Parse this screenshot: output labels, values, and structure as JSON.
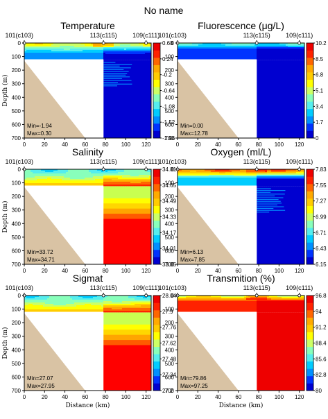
{
  "figure": {
    "title": "No name"
  },
  "chart_data": [
    {
      "type": "heatmap",
      "title": "Temperature",
      "xlabel": "Distance (km)",
      "ylabel": "Depth (m)",
      "xlim": [
        0,
        125
      ],
      "ylim": [
        700,
        0
      ],
      "x_ticks": [
        0,
        20,
        40,
        60,
        80,
        100,
        120
      ],
      "y_ticks": [
        0,
        100,
        200,
        300,
        400,
        500,
        600,
        700
      ],
      "stations": [
        {
          "label": "101(c103)",
          "x": 0
        },
        {
          "label": "113(c115)",
          "x": 78
        },
        {
          "label": "109(c111)",
          "x": 120
        }
      ],
      "colorbar": {
        "ticks": [
          "0.68",
          "0.24",
          "-0.2",
          "-0.64",
          "-1.08",
          "-1.52",
          "-1.96"
        ]
      },
      "min_label": "Min=-1.94",
      "max_label": "Max=0.30",
      "field": {
        "surface_level": 0.55,
        "deep_level": 0.05,
        "deep_west_level": 0.2,
        "pycnocline_m": 90,
        "mix_m": 40,
        "fish": true
      }
    },
    {
      "type": "heatmap",
      "title": "Fluorescence (μg/L)",
      "xlabel": "Distance (km)",
      "ylabel": "Depth (m)",
      "xlim": [
        0,
        125
      ],
      "ylim": [
        700,
        0
      ],
      "x_ticks": [
        0,
        20,
        40,
        60,
        80,
        100,
        120
      ],
      "y_ticks": [
        0,
        100,
        200,
        300,
        400,
        500,
        600,
        700
      ],
      "stations": [
        {
          "label": "101(c103)",
          "x": 0
        },
        {
          "label": "113(c115)",
          "x": 78
        },
        {
          "label": "109(c111)",
          "x": 120
        }
      ],
      "colorbar": {
        "ticks": [
          "10.2",
          "8.5",
          "6.8",
          "5.1",
          "3.4",
          "1.7",
          "0"
        ]
      },
      "min_label": "Min=0.00",
      "max_label": "Max=12.78",
      "field": {
        "surface_level": 0.35,
        "deep_level": 0.02,
        "deep_west_level": 0.1,
        "pycnocline_m": 60,
        "mix_m": 30,
        "fish": false
      }
    },
    {
      "type": "heatmap",
      "title": "Salinity",
      "xlabel": "Distance (km)",
      "ylabel": "Depth (m)",
      "xlim": [
        0,
        125
      ],
      "ylim": [
        700,
        0
      ],
      "x_ticks": [
        0,
        20,
        40,
        60,
        80,
        100,
        120
      ],
      "y_ticks": [
        0,
        100,
        200,
        300,
        400,
        500,
        600,
        700
      ],
      "stations": [
        {
          "label": "101(c103)",
          "x": 0
        },
        {
          "label": "113(c115)",
          "x": 78
        },
        {
          "label": "109(c111)",
          "x": 120
        }
      ],
      "colorbar": {
        "ticks": [
          "34.81",
          "34.65",
          "34.49",
          "34.33",
          "34.17",
          "34.01",
          "33.85"
        ]
      },
      "min_label": "Min=33.72",
      "max_label": "Max=34.71",
      "field": {
        "surface_level": 0.35,
        "deep_level": 0.95,
        "deep_west_level": 0.7,
        "pycnocline_m": 150,
        "mix_m": 200,
        "fish": false
      }
    },
    {
      "type": "heatmap",
      "title": "Oxygen (ml/L)",
      "xlabel": "Distance (km)",
      "ylabel": "Depth (m)",
      "xlim": [
        0,
        125
      ],
      "ylim": [
        700,
        0
      ],
      "x_ticks": [
        0,
        20,
        40,
        60,
        80,
        100,
        120
      ],
      "y_ticks": [
        0,
        100,
        200,
        300,
        400,
        500,
        600,
        700
      ],
      "stations": [
        {
          "label": "101(c103)",
          "x": 0
        },
        {
          "label": "113(c115)",
          "x": 78
        },
        {
          "label": "109(c111)",
          "x": 120
        }
      ],
      "colorbar": {
        "ticks": [
          "7.83",
          "7.55",
          "7.27",
          "6.99",
          "6.71",
          "6.43",
          "6.15"
        ]
      },
      "min_label": "Min=6.13",
      "max_label": "Max=7.85",
      "field": {
        "surface_level": 0.8,
        "deep_level": 0.06,
        "deep_west_level": 0.25,
        "pycnocline_m": 80,
        "mix_m": 50,
        "fish": true
      }
    },
    {
      "type": "heatmap",
      "title": "Sigmat",
      "xlabel": "Distance (km)",
      "ylabel": "Depth (m)",
      "xlim": [
        0,
        125
      ],
      "ylim": [
        700,
        0
      ],
      "x_ticks": [
        0,
        20,
        40,
        60,
        80,
        100,
        120
      ],
      "y_ticks": [
        0,
        100,
        200,
        300,
        400,
        500,
        600,
        700
      ],
      "stations": [
        {
          "label": "101(c103)",
          "x": 0
        },
        {
          "label": "113(c115)",
          "x": 78
        },
        {
          "label": "109(c111)",
          "x": 120
        }
      ],
      "colorbar": {
        "ticks": [
          "28.04",
          "27.9",
          "27.76",
          "27.62",
          "27.48",
          "27.34",
          "27.2"
        ]
      },
      "min_label": "Min=27.07",
      "max_label": "Max=27.95",
      "field": {
        "surface_level": 0.35,
        "deep_level": 0.95,
        "deep_west_level": 0.7,
        "pycnocline_m": 150,
        "mix_m": 200,
        "fish": false
      }
    },
    {
      "type": "heatmap",
      "title": "Transmition (%)",
      "xlabel": "Distance (km)",
      "ylabel": "Depth (m)",
      "xlim": [
        0,
        125
      ],
      "ylim": [
        700,
        0
      ],
      "x_ticks": [
        0,
        20,
        40,
        60,
        80,
        100,
        120
      ],
      "y_ticks": [
        0,
        100,
        200,
        300,
        400,
        500,
        600,
        700
      ],
      "stations": [
        {
          "label": "101(c103)",
          "x": 0
        },
        {
          "label": "113(c115)",
          "x": 78
        },
        {
          "label": "109(c111)",
          "x": 120
        }
      ],
      "colorbar": {
        "ticks": [
          "96.8",
          "94",
          "91.2",
          "88.4",
          "85.6",
          "82.8",
          "80"
        ]
      },
      "min_label": "Min=79.86",
      "max_label": "Max=97.25",
      "field": {
        "surface_level": 0.55,
        "deep_level": 0.96,
        "deep_west_level": 0.9,
        "pycnocline_m": 50,
        "mix_m": 30,
        "fish": false
      }
    }
  ]
}
